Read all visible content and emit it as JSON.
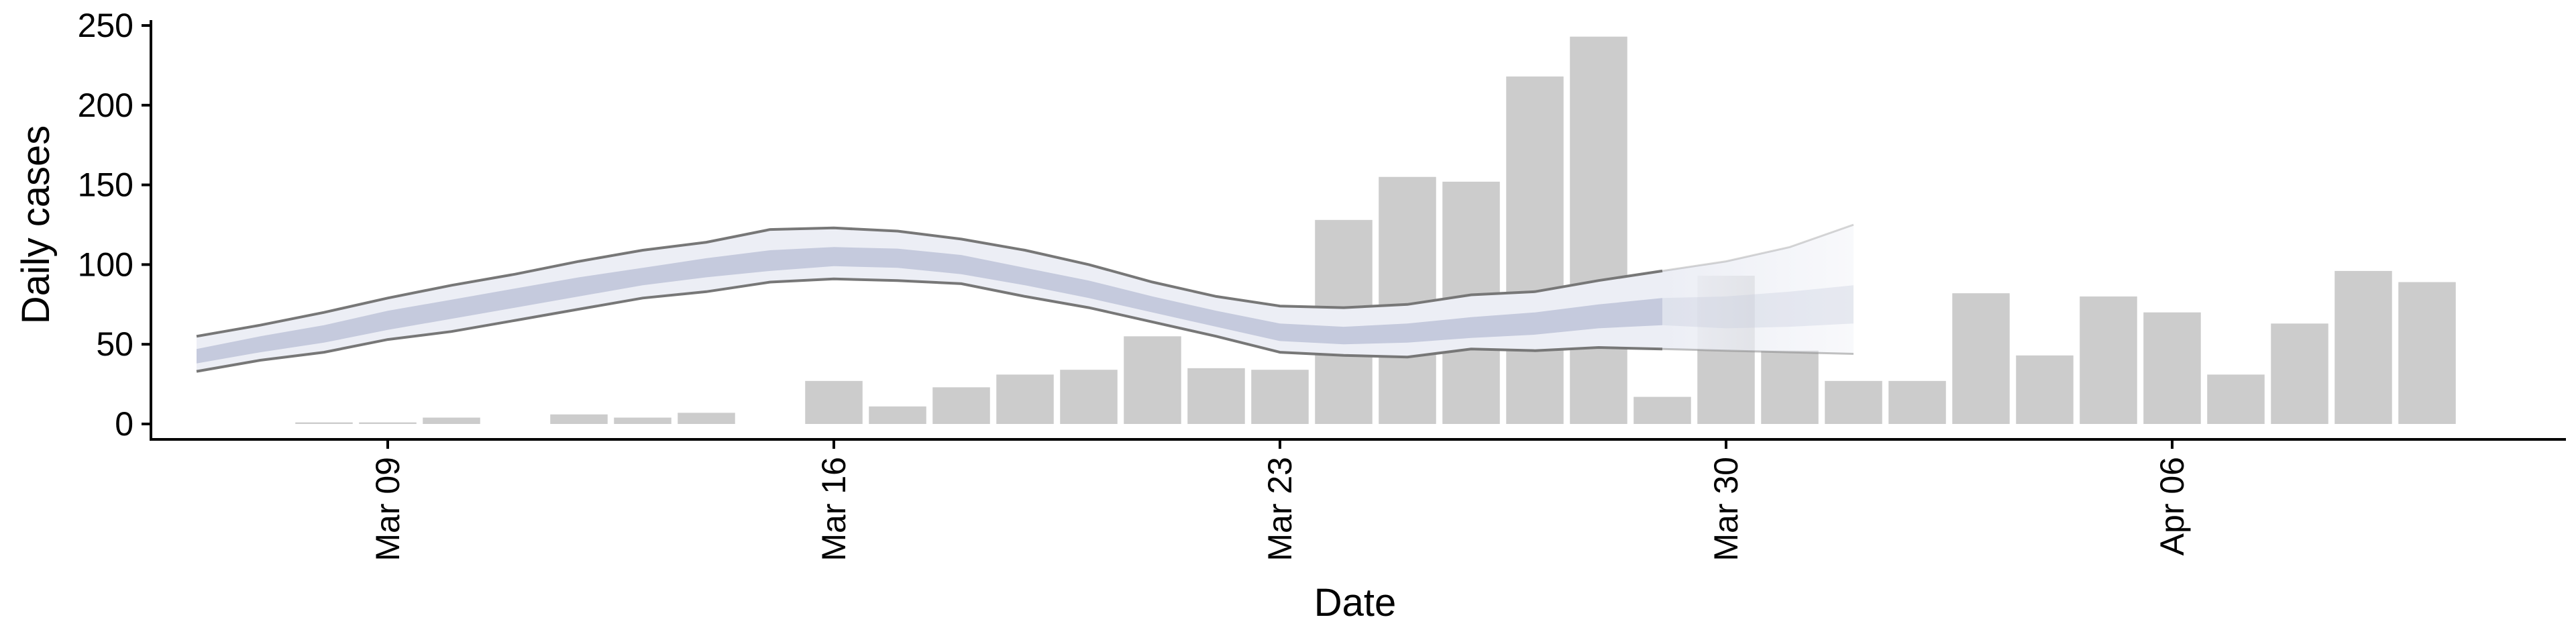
{
  "chart_data": {
    "type": "bar",
    "title": "",
    "xlabel": "Date",
    "ylabel": "Daily cases",
    "ylim": [
      0,
      250
    ],
    "yticks": [
      0,
      50,
      100,
      150,
      200,
      250
    ],
    "xticks": [
      {
        "date": "2020-03-09",
        "label": "Mar 09"
      },
      {
        "date": "2020-03-16",
        "label": "Mar 16"
      },
      {
        "date": "2020-03-23",
        "label": "Mar 23"
      },
      {
        "date": "2020-03-30",
        "label": "Mar 30"
      },
      {
        "date": "2020-04-06",
        "label": "Apr 06"
      }
    ],
    "xlim": [
      "2020-03-04",
      "2020-04-12"
    ],
    "grid": false,
    "legend": "none",
    "bar_color": "#cccccc",
    "bars": [
      {
        "date": "2020-03-08",
        "value": 1
      },
      {
        "date": "2020-03-09",
        "value": 1
      },
      {
        "date": "2020-03-10",
        "value": 4
      },
      {
        "date": "2020-03-11",
        "value": 0
      },
      {
        "date": "2020-03-12",
        "value": 6
      },
      {
        "date": "2020-03-13",
        "value": 4
      },
      {
        "date": "2020-03-14",
        "value": 7
      },
      {
        "date": "2020-03-15",
        "value": 0
      },
      {
        "date": "2020-03-16",
        "value": 27
      },
      {
        "date": "2020-03-17",
        "value": 11
      },
      {
        "date": "2020-03-18",
        "value": 23
      },
      {
        "date": "2020-03-19",
        "value": 31
      },
      {
        "date": "2020-03-20",
        "value": 34
      },
      {
        "date": "2020-03-21",
        "value": 55
      },
      {
        "date": "2020-03-22",
        "value": 35
      },
      {
        "date": "2020-03-23",
        "value": 34
      },
      {
        "date": "2020-03-24",
        "value": 128
      },
      {
        "date": "2020-03-25",
        "value": 155
      },
      {
        "date": "2020-03-26",
        "value": 152
      },
      {
        "date": "2020-03-27",
        "value": 218
      },
      {
        "date": "2020-03-28",
        "value": 243
      },
      {
        "date": "2020-03-29",
        "value": 17
      },
      {
        "date": "2020-03-30",
        "value": 93
      },
      {
        "date": "2020-03-31",
        "value": 46
      },
      {
        "date": "2020-04-01",
        "value": 27
      },
      {
        "date": "2020-04-02",
        "value": 27
      },
      {
        "date": "2020-04-03",
        "value": 82
      },
      {
        "date": "2020-04-04",
        "value": 43
      },
      {
        "date": "2020-04-05",
        "value": 80
      },
      {
        "date": "2020-04-06",
        "value": 70
      },
      {
        "date": "2020-04-07",
        "value": 31
      },
      {
        "date": "2020-04-08",
        "value": 63
      },
      {
        "date": "2020-04-09",
        "value": 96
      },
      {
        "date": "2020-04-10",
        "value": 89
      }
    ],
    "estimate": {
      "band_outer_color": "#eceef5",
      "band_inner_color": "#c5cadd",
      "line_color": "#777777",
      "points": [
        {
          "date": "2020-03-06",
          "lower90": 33,
          "lower50": 38,
          "upper50": 47,
          "upper90": 55
        },
        {
          "date": "2020-03-07",
          "lower90": 40,
          "lower50": 45,
          "upper50": 55,
          "upper90": 62
        },
        {
          "date": "2020-03-08",
          "lower90": 45,
          "lower50": 51,
          "upper50": 62,
          "upper90": 70
        },
        {
          "date": "2020-03-09",
          "lower90": 53,
          "lower50": 59,
          "upper50": 71,
          "upper90": 79
        },
        {
          "date": "2020-03-10",
          "lower90": 58,
          "lower50": 66,
          "upper50": 78,
          "upper90": 87
        },
        {
          "date": "2020-03-11",
          "lower90": 65,
          "lower50": 73,
          "upper50": 85,
          "upper90": 94
        },
        {
          "date": "2020-03-12",
          "lower90": 72,
          "lower50": 80,
          "upper50": 92,
          "upper90": 102
        },
        {
          "date": "2020-03-13",
          "lower90": 79,
          "lower50": 87,
          "upper50": 98,
          "upper90": 109
        },
        {
          "date": "2020-03-14",
          "lower90": 83,
          "lower50": 92,
          "upper50": 104,
          "upper90": 114
        },
        {
          "date": "2020-03-15",
          "lower90": 89,
          "lower50": 96,
          "upper50": 109,
          "upper90": 122
        },
        {
          "date": "2020-03-16",
          "lower90": 91,
          "lower50": 99,
          "upper50": 111,
          "upper90": 123
        },
        {
          "date": "2020-03-17",
          "lower90": 90,
          "lower50": 98,
          "upper50": 110,
          "upper90": 121
        },
        {
          "date": "2020-03-18",
          "lower90": 88,
          "lower50": 94,
          "upper50": 106,
          "upper90": 116
        },
        {
          "date": "2020-03-19",
          "lower90": 80,
          "lower50": 87,
          "upper50": 98,
          "upper90": 109
        },
        {
          "date": "2020-03-20",
          "lower90": 73,
          "lower50": 79,
          "upper50": 90,
          "upper90": 100
        },
        {
          "date": "2020-03-21",
          "lower90": 64,
          "lower50": 70,
          "upper50": 80,
          "upper90": 89
        },
        {
          "date": "2020-03-22",
          "lower90": 55,
          "lower50": 61,
          "upper50": 71,
          "upper90": 80
        },
        {
          "date": "2020-03-23",
          "lower90": 45,
          "lower50": 52,
          "upper50": 63,
          "upper90": 74
        },
        {
          "date": "2020-03-24",
          "lower90": 43,
          "lower50": 50,
          "upper50": 61,
          "upper90": 73
        },
        {
          "date": "2020-03-25",
          "lower90": 42,
          "lower50": 51,
          "upper50": 63,
          "upper90": 75
        },
        {
          "date": "2020-03-26",
          "lower90": 47,
          "lower50": 54,
          "upper50": 67,
          "upper90": 81
        },
        {
          "date": "2020-03-27",
          "lower90": 46,
          "lower50": 56,
          "upper50": 70,
          "upper90": 83
        },
        {
          "date": "2020-03-28",
          "lower90": 48,
          "lower50": 60,
          "upper50": 75,
          "upper90": 90
        },
        {
          "date": "2020-03-29",
          "lower90": 47,
          "lower50": 62,
          "upper50": 79,
          "upper90": 96
        },
        {
          "date": "2020-03-30",
          "lower90": 46,
          "lower50": 60,
          "upper50": 80,
          "upper90": 102
        },
        {
          "date": "2020-03-31",
          "lower90": 45,
          "lower50": 61,
          "upper50": 83,
          "upper90": 111
        },
        {
          "date": "2020-04-01",
          "lower90": 44,
          "lower50": 63,
          "upper50": 87,
          "upper90": 125
        }
      ],
      "forecast_from": "2020-03-29"
    }
  }
}
